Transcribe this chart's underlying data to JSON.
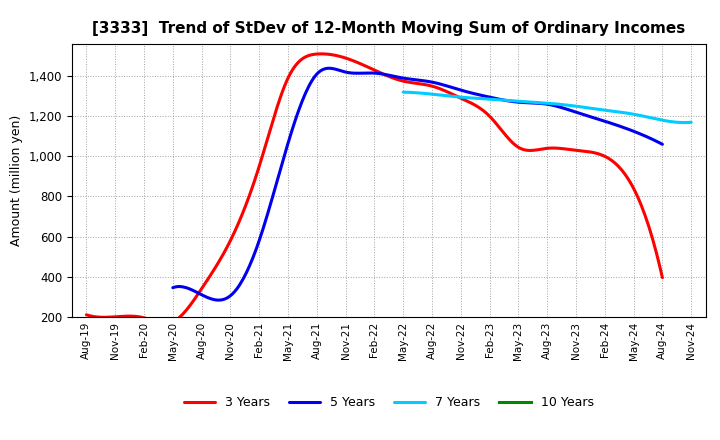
{
  "title": "[3333]  Trend of StDev of 12-Month Moving Sum of Ordinary Incomes",
  "ylabel": "Amount (million yen)",
  "background_color": "#ffffff",
  "plot_bg_color": "#ffffff",
  "grid_color": "#999999",
  "ylim": [
    200,
    1560
  ],
  "yticks": [
    200,
    400,
    600,
    800,
    1000,
    1200,
    1400
  ],
  "legend_labels": [
    "3 Years",
    "5 Years",
    "7 Years",
    "10 Years"
  ],
  "legend_colors": [
    "#ff0000",
    "#0000ee",
    "#00ccff",
    "#008800"
  ],
  "x_labels": [
    "Aug-19",
    "Nov-19",
    "Feb-20",
    "May-20",
    "Aug-20",
    "Nov-20",
    "Feb-21",
    "May-21",
    "Aug-21",
    "Nov-21",
    "Feb-22",
    "May-22",
    "Aug-22",
    "Nov-22",
    "Feb-23",
    "May-23",
    "Aug-23",
    "Nov-23",
    "Feb-24",
    "May-24",
    "Aug-24",
    "Nov-24"
  ],
  "series_3y_x": [
    0,
    1,
    2,
    3,
    4,
    5,
    6,
    7,
    8,
    9,
    10,
    11,
    12,
    13,
    14,
    15,
    16,
    17,
    18,
    19,
    20
  ],
  "series_3y_y": [
    210,
    200,
    195,
    175,
    340,
    580,
    950,
    1390,
    1510,
    1490,
    1430,
    1375,
    1350,
    1290,
    1200,
    1045,
    1040,
    1030,
    1000,
    840,
    395
  ],
  "series_5y_x": [
    3,
    4,
    5,
    6,
    7,
    8,
    9,
    10,
    11,
    12,
    13,
    14,
    15,
    16,
    17,
    18,
    19,
    20
  ],
  "series_5y_y": [
    345,
    310,
    305,
    580,
    1065,
    1410,
    1420,
    1415,
    1390,
    1370,
    1330,
    1295,
    1270,
    1260,
    1220,
    1175,
    1125,
    1060
  ],
  "series_7y_x": [
    11,
    12,
    13,
    14,
    15,
    16,
    17,
    18,
    19,
    20,
    21
  ],
  "series_7y_y": [
    1320,
    1310,
    1295,
    1285,
    1275,
    1265,
    1250,
    1230,
    1210,
    1180,
    1170
  ],
  "series_10y_x": [],
  "series_10y_y": [],
  "line_width": 2.2
}
